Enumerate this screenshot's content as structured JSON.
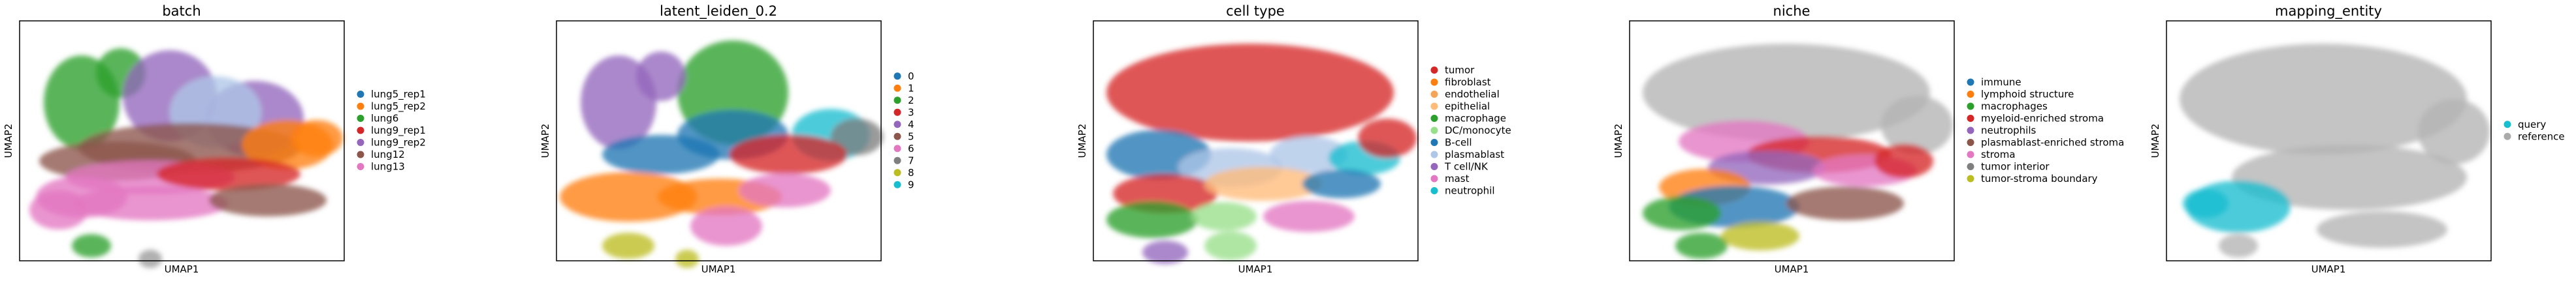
{
  "chart_data": [
    {
      "type": "scatter",
      "title": "batch",
      "xlabel": "UMAP1",
      "ylabel": "UMAP2",
      "grid": false,
      "legend_position": "right",
      "legend": [
        {
          "label": "lung5_rep1",
          "color": "#1f77b4"
        },
        {
          "label": "lung5_rep2",
          "color": "#ff7f0e"
        },
        {
          "label": "lung6",
          "color": "#2ca02c"
        },
        {
          "label": "lung9_rep1",
          "color": "#d62728"
        },
        {
          "label": "lung9_rep2",
          "color": "#9467bd"
        },
        {
          "label": "lung12",
          "color": "#8c564b"
        },
        {
          "label": "lung13",
          "color": "#e377c2"
        }
      ]
    },
    {
      "type": "scatter",
      "title": "latent_leiden_0.2",
      "xlabel": "UMAP1",
      "ylabel": "UMAP2",
      "grid": false,
      "legend_position": "right",
      "legend": [
        {
          "label": "0",
          "color": "#1f77b4"
        },
        {
          "label": "1",
          "color": "#ff7f0e"
        },
        {
          "label": "2",
          "color": "#2ca02c"
        },
        {
          "label": "3",
          "color": "#d62728"
        },
        {
          "label": "4",
          "color": "#9467bd"
        },
        {
          "label": "5",
          "color": "#8c564b"
        },
        {
          "label": "6",
          "color": "#e377c2"
        },
        {
          "label": "7",
          "color": "#7f7f7f"
        },
        {
          "label": "8",
          "color": "#bcbd22"
        },
        {
          "label": "9",
          "color": "#17becf"
        }
      ]
    },
    {
      "type": "scatter",
      "title": "cell type",
      "xlabel": "UMAP1",
      "ylabel": "UMAP2",
      "grid": false,
      "legend_position": "right",
      "legend": [
        {
          "label": "tumor",
          "color": "#d62728"
        },
        {
          "label": "fibroblast",
          "color": "#ff7f0e"
        },
        {
          "label": "endothelial",
          "color": "#f5a55a"
        },
        {
          "label": "epithelial",
          "color": "#ffbb78"
        },
        {
          "label": "macrophage",
          "color": "#2ca02c"
        },
        {
          "label": "DC/monocyte",
          "color": "#98df8a"
        },
        {
          "label": "B-cell",
          "color": "#1f77b4"
        },
        {
          "label": "plasmablast",
          "color": "#aec7e8"
        },
        {
          "label": "T cell/NK",
          "color": "#9467bd"
        },
        {
          "label": "mast",
          "color": "#e377c2"
        },
        {
          "label": "neutrophil",
          "color": "#17becf"
        }
      ]
    },
    {
      "type": "scatter",
      "title": "niche",
      "xlabel": "UMAP1",
      "ylabel": "UMAP2",
      "grid": false,
      "legend_position": "right",
      "legend": [
        {
          "label": "immune",
          "color": "#1f77b4"
        },
        {
          "label": "lymphoid structure",
          "color": "#ff7f0e"
        },
        {
          "label": "macrophages",
          "color": "#2ca02c"
        },
        {
          "label": "myeloid-enriched stroma",
          "color": "#d62728"
        },
        {
          "label": "neutrophils",
          "color": "#9467bd"
        },
        {
          "label": "plasmablast-enriched stroma",
          "color": "#8c564b"
        },
        {
          "label": "stroma",
          "color": "#e377c2"
        },
        {
          "label": "tumor interior",
          "color": "#7f7f7f"
        },
        {
          "label": "tumor-stroma boundary",
          "color": "#bcbd22"
        }
      ]
    },
    {
      "type": "scatter",
      "title": "mapping_entity",
      "xlabel": "UMAP1",
      "ylabel": "UMAP2",
      "grid": false,
      "legend_position": "right",
      "legend": [
        {
          "label": "query",
          "color": "#17becf"
        },
        {
          "label": "reference",
          "color": "#aaaaaa"
        }
      ]
    }
  ]
}
